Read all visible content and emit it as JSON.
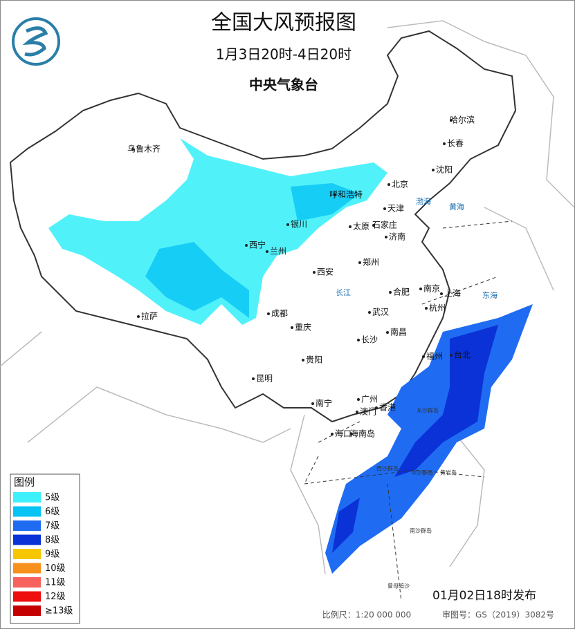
{
  "header": {
    "title": "全国大风预报图",
    "subtitle": "1月3日20时-4日20时",
    "issuer": "中央气象台"
  },
  "cities": [
    "乌鲁木齐",
    "哈尔滨",
    "长春",
    "沈阳",
    "北京",
    "天津",
    "呼和浩特",
    "银川",
    "太原",
    "石家庄",
    "济南",
    "西宁",
    "兰州",
    "西安",
    "郑州",
    "南京",
    "合肥",
    "上海",
    "杭州",
    "拉萨",
    "成都",
    "重庆",
    "武汉",
    "长沙",
    "南昌",
    "福州",
    "台北",
    "贵阳",
    "昆明",
    "南宁",
    "广州",
    "澳门",
    "香港",
    "海口",
    "海南岛"
  ],
  "seas": [
    "东海",
    "黄海",
    "渤海",
    "长江"
  ],
  "islands": [
    "东沙群岛",
    "西沙群岛",
    "中沙群岛",
    "黄岩岛",
    "南沙群岛",
    "曾母暗沙"
  ],
  "legend": {
    "title": "图例",
    "items": [
      {
        "label": "5级",
        "color": "#3ef0fa"
      },
      {
        "label": "6级",
        "color": "#08c4f4"
      },
      {
        "label": "7级",
        "color": "#1f6cf2"
      },
      {
        "label": "8级",
        "color": "#0a32d6"
      },
      {
        "label": "9级",
        "color": "#f6c700"
      },
      {
        "label": "10级",
        "color": "#f7901c"
      },
      {
        "label": "11级",
        "color": "#f7625e"
      },
      {
        "label": "12级",
        "color": "#ef0e0e"
      },
      {
        "label": "≥13级",
        "color": "#c40000"
      }
    ]
  },
  "footer": {
    "issued": "01月02日18时发布",
    "scale": "比例尺：1:20 000 000",
    "review": "审图号：GS（2019）3082号"
  }
}
